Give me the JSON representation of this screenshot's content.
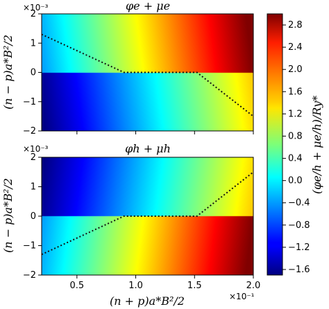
{
  "chart_data": [
    {
      "type": "heatmap",
      "title": "φe + μe",
      "multiplier_y": "×10⁻³",
      "ylabel": "(n − p)a*B²/2",
      "xlim": [
        0.2,
        2.0
      ],
      "ylim": [
        -2,
        2
      ],
      "y_ticks": [
        "−2",
        "−1",
        "0",
        "1",
        "2"
      ],
      "field": {
        "upper_at_xmin": -0.4,
        "upper_at_xmax": 3.0,
        "lower_at_xmin": -1.6,
        "lower_at_xmax": 1.5,
        "y_weight": 0.06
      },
      "boundary_line": {
        "style": "dotted",
        "x": [
          0.2,
          0.9,
          1.52,
          2.0
        ],
        "y": [
          1.3,
          0.0,
          0.0,
          -1.5
        ]
      }
    },
    {
      "type": "heatmap",
      "title": "φh + μh",
      "multiplier_y": "×10⁻³",
      "ylabel": "(n − p)a*B²/2",
      "xlabel": "(n + p)a*B²/2",
      "multiplier_x": "×10⁻¹",
      "xlim": [
        0.2,
        2.0
      ],
      "ylim": [
        -2,
        2
      ],
      "x_ticks": [
        "0.5",
        "1.0",
        "1.5",
        "2.0"
      ],
      "y_ticks": [
        "−2",
        "−1",
        "0",
        "1",
        "2"
      ],
      "field": {
        "upper_at_xmin": -1.6,
        "upper_at_xmax": 1.5,
        "lower_at_xmin": -0.4,
        "lower_at_xmax": 3.0,
        "y_weight": -0.06
      },
      "boundary_line": {
        "style": "dotted",
        "x": [
          0.2,
          0.9,
          1.52,
          2.0
        ],
        "y": [
          -1.3,
          0.0,
          0.0,
          1.5
        ]
      }
    }
  ],
  "colorbar": {
    "label": "(φe/h + μe/h)/Ry*",
    "colormap": "jet",
    "vmin": -1.7,
    "vmax": 3.0,
    "ticks": [
      "2.8",
      "2.4",
      "2.0",
      "1.6",
      "1.2",
      "0.8",
      "0.4",
      "0.0",
      "−0.4",
      "−0.8",
      "−1.2",
      "−1.6"
    ]
  }
}
